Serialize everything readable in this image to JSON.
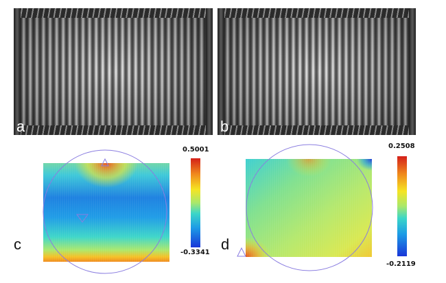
{
  "panels": [
    {
      "label": "a"
    },
    {
      "label": "b"
    },
    {
      "label": "c",
      "colorbar": {
        "max": "0.5001",
        "min": "-0.3341"
      }
    },
    {
      "label": "d",
      "colorbar": {
        "max": "0.2508",
        "min": "-0.2119"
      }
    }
  ],
  "colors": {
    "colormap": [
      "#1a36d8",
      "#1c9be6",
      "#3cd6c8",
      "#a9e86b",
      "#f5e423",
      "#f08a1c",
      "#d4201a"
    ],
    "aperture_circle": "#8a7de0"
  }
}
